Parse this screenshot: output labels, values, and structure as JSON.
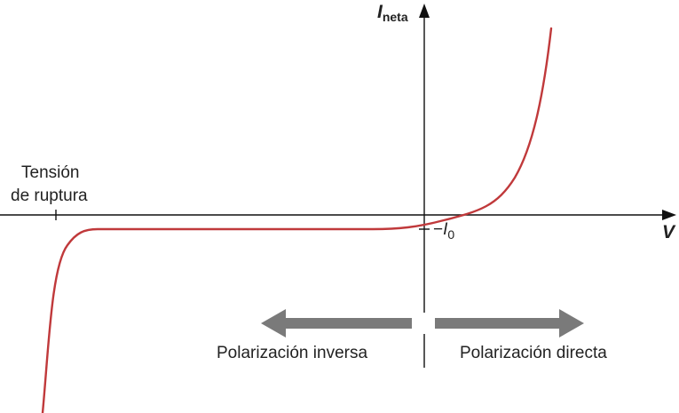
{
  "axes": {
    "y_label": "I",
    "y_label_sub": "neta",
    "x_label": "V"
  },
  "annotations": {
    "breakdown_line1": "Tensión",
    "breakdown_line2": "de ruptura",
    "i0_dash": "−",
    "i0_letter": "I",
    "i0_sub": "0",
    "reverse_label": "Polarización inversa",
    "forward_label": "Polarización directa"
  },
  "colors": {
    "curve": "#c0393b",
    "axis": "#111111",
    "arrow": "#7a7a7a"
  }
}
